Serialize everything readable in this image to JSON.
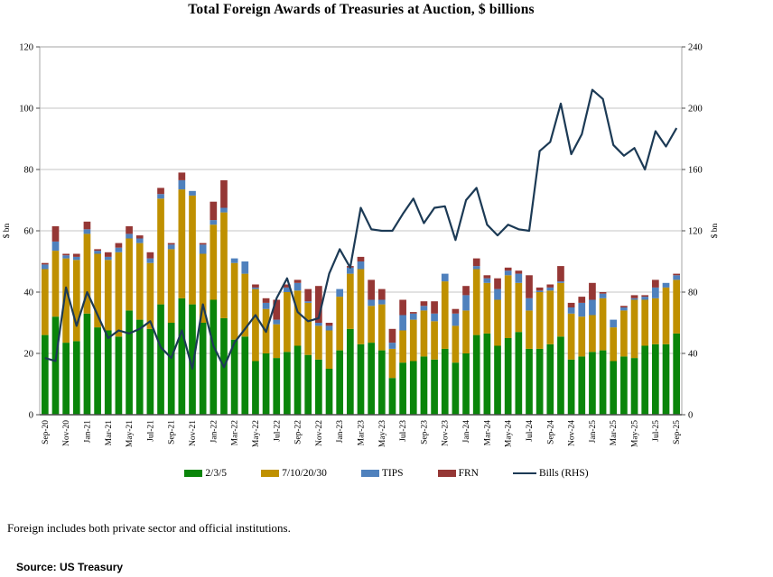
{
  "title": "Total Foreign Awards of Treasuries at Auction, $ billions",
  "note": "Foreign includes both private sector and official institutions.",
  "source": "Source: US Treasury",
  "chart_data": {
    "type": "bar",
    "subtype": "stacked-bar-with-line",
    "x_tick_every": 2,
    "grid": true,
    "legend_position": "bottom",
    "left_axis": {
      "label": "$ bn",
      "min": 0,
      "max": 120,
      "step": 20
    },
    "right_axis": {
      "label": "$ bn",
      "min": 0,
      "max": 240,
      "step": 40
    },
    "months": [
      "Sep-20",
      "Oct-20",
      "Nov-20",
      "Dec-20",
      "Jan-21",
      "Feb-21",
      "Mar-21",
      "Apr-21",
      "May-21",
      "Jun-21",
      "Jul-21",
      "Aug-21",
      "Sep-21",
      "Oct-21",
      "Nov-21",
      "Dec-21",
      "Jan-22",
      "Feb-22",
      "Mar-22",
      "Apr-22",
      "May-22",
      "Jun-22",
      "Jul-22",
      "Aug-22",
      "Sep-22",
      "Oct-22",
      "Nov-22",
      "Dec-22",
      "Jan-23",
      "Feb-23",
      "Mar-23",
      "Apr-23",
      "May-23",
      "Jun-23",
      "Jul-23",
      "Aug-23",
      "Sep-23",
      "Oct-23",
      "Nov-23",
      "Dec-23",
      "Jan-24",
      "Feb-24",
      "Mar-24",
      "Apr-24",
      "May-24",
      "Jun-24",
      "Jul-24",
      "Aug-24",
      "Sep-24",
      "Oct-24",
      "Nov-24",
      "Dec-24",
      "Jan-25",
      "Feb-25",
      "Mar-25",
      "Apr-25",
      "May-25",
      "Jun-25",
      "Jul-25",
      "Aug-25",
      "Sep-25"
    ],
    "series": [
      {
        "name": "2/3/5",
        "type": "bar",
        "color": "#0a850a",
        "values": [
          26,
          32,
          23.5,
          24,
          33,
          28.5,
          27.5,
          25.5,
          34,
          31,
          28,
          36,
          30,
          38,
          36,
          30,
          37.5,
          31.5,
          24.5,
          25.5,
          17.5,
          20,
          18.5,
          20.5,
          22.5,
          19.5,
          18,
          15,
          21,
          28,
          23,
          23.5,
          21,
          12,
          17,
          17.5,
          19,
          18,
          21.5,
          17,
          20,
          26,
          26.5,
          22.5,
          25,
          27,
          21.5,
          21.5,
          23,
          25.5,
          18,
          19,
          20.5,
          21,
          17.5,
          19,
          18.5,
          22.5,
          23,
          23,
          26.5
        ]
      },
      {
        "name": "7/10/20/30",
        "type": "bar",
        "color": "#bf9000",
        "values": [
          21.5,
          21.5,
          27.5,
          26.5,
          26,
          24,
          23,
          27.5,
          23.5,
          25,
          21.5,
          34.5,
          24,
          35.5,
          35.5,
          22.5,
          24.5,
          34.5,
          25,
          20.5,
          23.5,
          14.5,
          11,
          19.5,
          18,
          17,
          11,
          12.5,
          17.5,
          18,
          24.5,
          12,
          15,
          9.5,
          10.5,
          13.5,
          15,
          12.5,
          22,
          12,
          14,
          21.5,
          16.5,
          15,
          20.5,
          16,
          12.5,
          18.5,
          17.5,
          17.5,
          15,
          13,
          12,
          17,
          11,
          15,
          19,
          15,
          15,
          18.5,
          17.5
        ]
      },
      {
        "name": "TIPS",
        "type": "bar",
        "color": "#4f81bd",
        "values": [
          1.5,
          3,
          1,
          1,
          1.5,
          1,
          1,
          1.5,
          1.5,
          1.5,
          1.5,
          1.5,
          1.5,
          3,
          1.5,
          3,
          1.5,
          1.5,
          1.5,
          4,
          0.5,
          2,
          1.5,
          1.5,
          2.5,
          0.5,
          1,
          1.5,
          2.5,
          2,
          2.5,
          2,
          1.5,
          2,
          5,
          2,
          1.5,
          2.5,
          2.5,
          4,
          5,
          1,
          1.5,
          3.5,
          1.5,
          3,
          4,
          0.5,
          1,
          0.5,
          2,
          4.5,
          5,
          1.5,
          2.5,
          1,
          0.5,
          1,
          3.5,
          1.5,
          1.5
        ]
      },
      {
        "name": "FRN",
        "type": "bar",
        "color": "#953735",
        "values": [
          0.5,
          5,
          0.5,
          1,
          2.5,
          0.5,
          1.5,
          1.5,
          2.5,
          1,
          2,
          2,
          0.5,
          2.5,
          0,
          0.5,
          6,
          9,
          0,
          0,
          1,
          1.5,
          6.5,
          1,
          1,
          4,
          12,
          1,
          0,
          0.5,
          1.5,
          6.5,
          3.5,
          4.5,
          5,
          0.5,
          1.5,
          4,
          0,
          1.5,
          3,
          2.5,
          1,
          3.5,
          1,
          1,
          7.5,
          1,
          1,
          5,
          1.5,
          2,
          5.5,
          0.5,
          0,
          0.5,
          1,
          0.5,
          2.5,
          0,
          0.5
        ]
      },
      {
        "name": "Bills (RHS)",
        "type": "line",
        "axis": "right",
        "color": "#1c3a55",
        "values": [
          37,
          35,
          83,
          58,
          80,
          65,
          50,
          55,
          53,
          56,
          61,
          44,
          37,
          55,
          30,
          72,
          45,
          31,
          47,
          56,
          65,
          54,
          76,
          89,
          67,
          61,
          63,
          92,
          108,
          96,
          135,
          121,
          120,
          120,
          131,
          141,
          125,
          135,
          136,
          114,
          140,
          148,
          124,
          117,
          124,
          121,
          120,
          172,
          178,
          203,
          170,
          183,
          212,
          206,
          176,
          169,
          174,
          160,
          185,
          175,
          187
        ]
      }
    ],
    "colors": {
      "grid": "#c6c6c6",
      "plot_border": "#a6a6a6",
      "axis": "#4d4d4d"
    }
  }
}
